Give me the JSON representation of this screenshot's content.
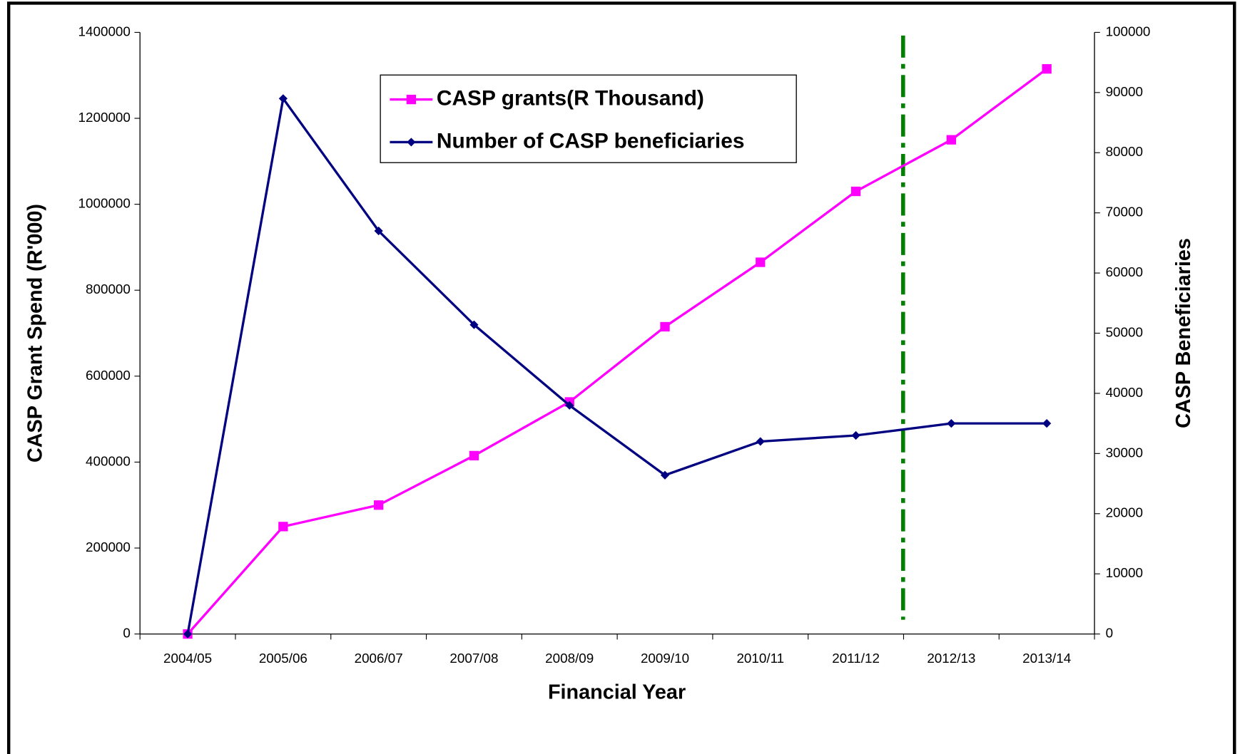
{
  "chart_data": {
    "type": "line",
    "xlabel": "Financial Year",
    "ylabel": "CASP Grant Spend (R'000)",
    "y2label": "CASP Beneficiaries",
    "categories": [
      "2004/05",
      "2005/06",
      "2006/07",
      "2007/08",
      "2008/09",
      "2009/10",
      "2010/11",
      "2011/12",
      "2012/13",
      "2013/14"
    ],
    "series": [
      {
        "name": "CASP grants(R Thousand)",
        "color": "#ff00ff",
        "marker": "square",
        "values": [
          0,
          250000,
          300000,
          415000,
          540000,
          715000,
          865000,
          1030000,
          1150000,
          1315000
        ]
      },
      {
        "name": "Number of CASP beneficiaries",
        "color": "#000080",
        "marker": "diamond",
        "axis": "y2",
        "values": [
          0,
          89000,
          67000,
          51400,
          38000,
          26400,
          32000,
          33000,
          35000,
          35000
        ]
      }
    ],
    "ylim": [
      0,
      1400000
    ],
    "yticks": [
      0,
      200000,
      400000,
      600000,
      800000,
      1000000,
      1200000,
      1400000
    ],
    "y2lim": [
      0,
      100000
    ],
    "y2ticks": [
      0,
      10000,
      20000,
      30000,
      40000,
      50000,
      60000,
      70000,
      80000,
      90000,
      100000
    ],
    "grid": false
  }
}
